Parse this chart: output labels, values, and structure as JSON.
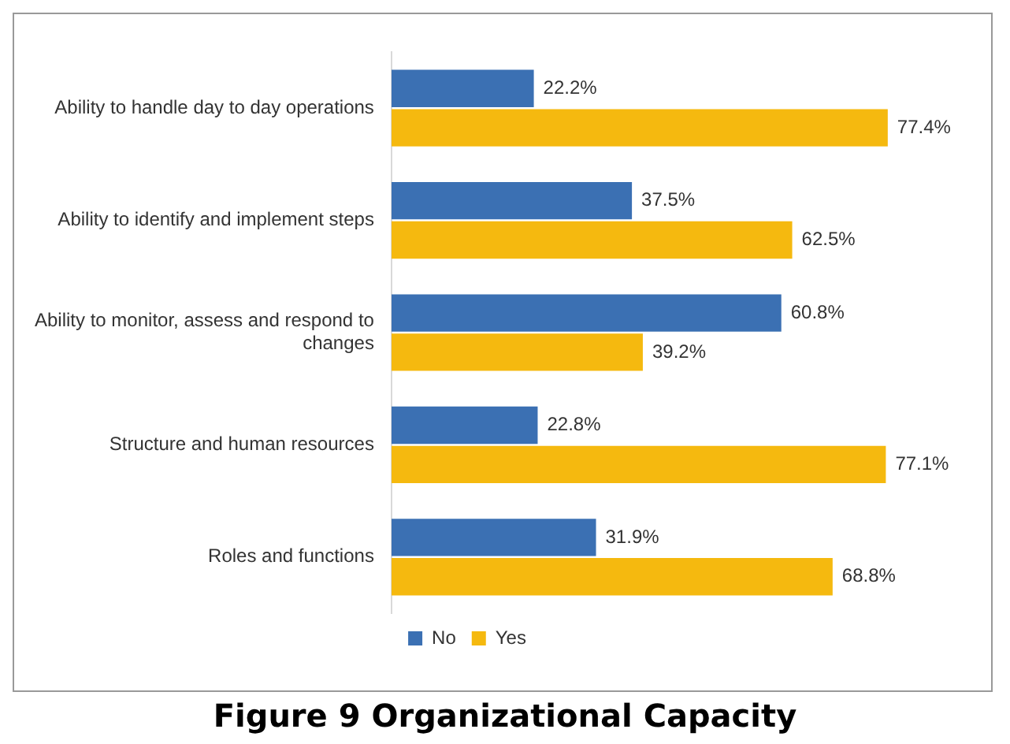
{
  "chart_data": {
    "type": "bar",
    "orientation": "horizontal",
    "title": "Figure 9 Organizational Capacity",
    "categories": [
      "Ability to handle day to day operations",
      "Ability to identify and implement steps",
      "Ability to monitor, assess and respond to changes",
      "Structure and human resources",
      "Roles and functions"
    ],
    "series": [
      {
        "name": "No",
        "color": "#3b70b3",
        "values": [
          22.2,
          37.5,
          60.8,
          22.8,
          31.9
        ],
        "value_labels": [
          "22.2%",
          "37.5%",
          "60.8%",
          "22.8%",
          "31.9%"
        ]
      },
      {
        "name": "Yes",
        "color": "#f5b90f",
        "values": [
          77.4,
          62.5,
          39.2,
          77.1,
          68.8
        ],
        "value_labels": [
          "77.4%",
          "62.5%",
          "39.2%",
          "77.1%",
          "68.8%"
        ]
      }
    ],
    "legend": "bottom"
  }
}
